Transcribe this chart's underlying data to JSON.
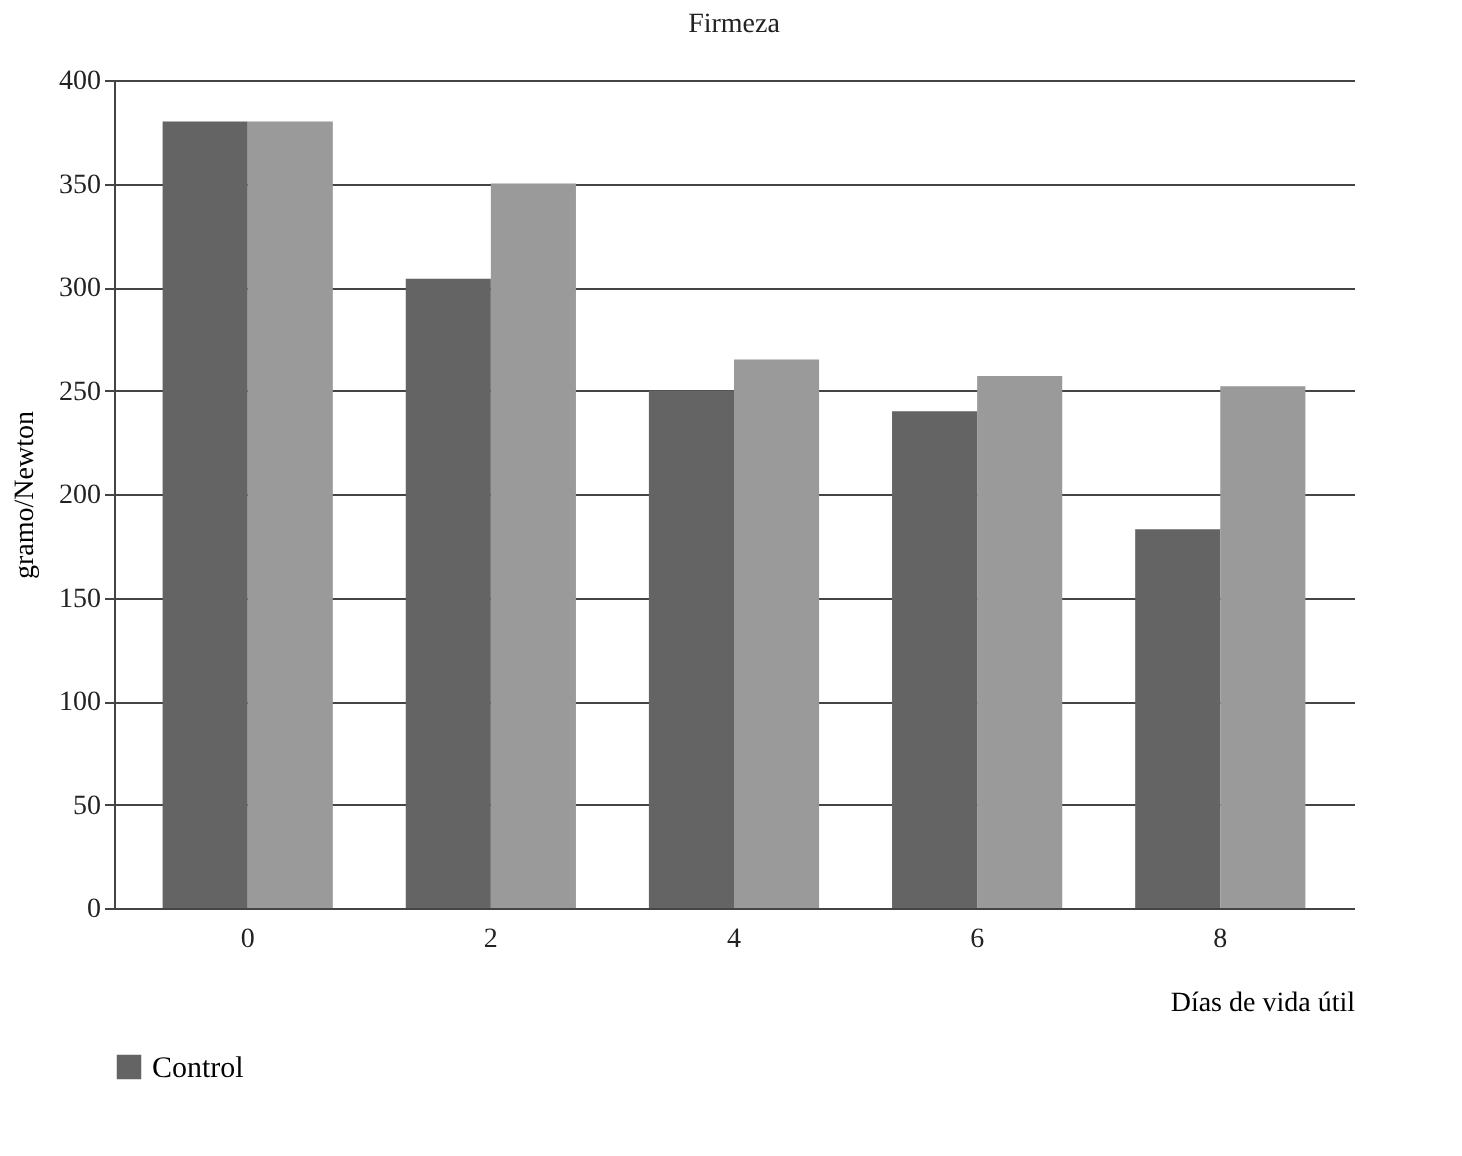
{
  "chart_data": {
    "type": "bar",
    "title": "Firmeza",
    "xlabel": "Días de vida útil",
    "ylabel": "gramo/Newton",
    "categories": [
      "0",
      "2",
      "4",
      "6",
      "8"
    ],
    "series": [
      {
        "name": "Control",
        "color": "#646464",
        "values": [
          380,
          304,
          250,
          240,
          183
        ]
      },
      {
        "color": "#9a9a9b",
        "values": [
          380,
          350,
          265,
          257,
          252
        ]
      }
    ],
    "ylim": [
      0,
      400
    ],
    "yticks": [
      0,
      50,
      100,
      150,
      200,
      250,
      300,
      350,
      400
    ],
    "grid": "y",
    "legend": "bottom"
  }
}
